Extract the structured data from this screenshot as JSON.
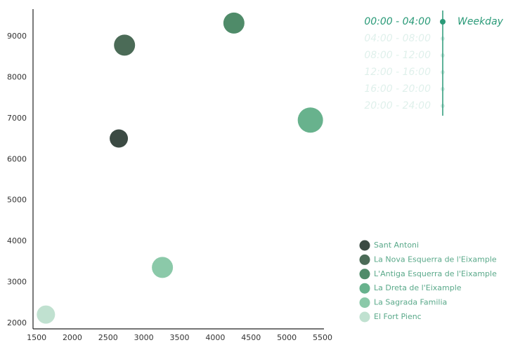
{
  "chart_data": {
    "type": "bubble",
    "xlim": [
      1450,
      5520
    ],
    "ylim": [
      1860,
      9670
    ],
    "xticks": [
      1500,
      2000,
      2500,
      3000,
      3500,
      4000,
      4500,
      5000,
      5500
    ],
    "yticks": [
      2000,
      3000,
      4000,
      5000,
      6000,
      7000,
      8000,
      9000
    ],
    "series": [
      {
        "name": "Sant Antoni",
        "color": "#3b4a43",
        "x": [
          2650
        ],
        "values": [
          6510
        ],
        "sizes": [
          13
        ]
      },
      {
        "name": "La Nova Esquerra de l'Eixample",
        "color": "#4b6b57",
        "x": [
          2730
        ],
        "values": [
          8790
        ],
        "sizes": [
          15
        ]
      },
      {
        "name": "L'Antiga Esquerra de l'Eixample",
        "color": "#4f8b69",
        "x": [
          4260
        ],
        "values": [
          9330
        ],
        "sizes": [
          15
        ]
      },
      {
        "name": "La Dreta de l'Eixample",
        "color": "#68b28d",
        "x": [
          5330
        ],
        "values": [
          6960
        ],
        "sizes": [
          18
        ]
      },
      {
        "name": "La Sagrada Familia",
        "color": "#8bc9a9",
        "x": [
          3260
        ],
        "values": [
          3360
        ],
        "sizes": [
          15
        ]
      },
      {
        "name": "El Fort Pienc",
        "color": "#c0e1d0",
        "x": [
          1630
        ],
        "values": [
          2210
        ],
        "sizes": [
          13
        ]
      }
    ],
    "time_options": [
      "00:00 - 04:00",
      "04:00 - 08:00",
      "08:00 - 12:00",
      "12:00 - 16:00",
      "16:00 - 20:00",
      "20:00 - 24:00"
    ],
    "selected_time": 0,
    "day_type": "Weekday",
    "accent_color": "#2a9a78"
  }
}
